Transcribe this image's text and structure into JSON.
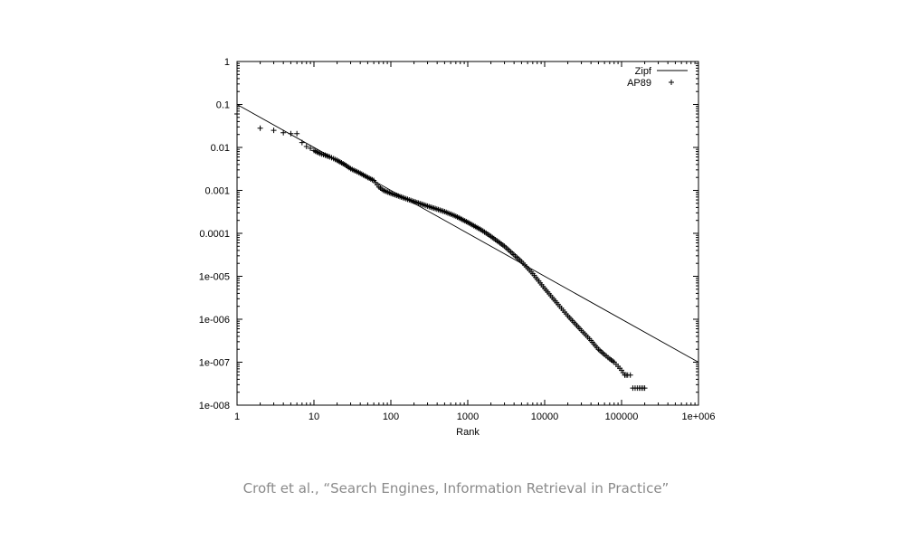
{
  "chart_data": {
    "type": "scatter",
    "xlabel": "Rank",
    "ylabel": "",
    "xscale": "log",
    "yscale": "log",
    "xlim": [
      1,
      1000000
    ],
    "ylim": [
      1e-08,
      1
    ],
    "x_ticks": [
      {
        "value": 1,
        "label": "1"
      },
      {
        "value": 10,
        "label": "10"
      },
      {
        "value": 100,
        "label": "100"
      },
      {
        "value": 1000,
        "label": "1000"
      },
      {
        "value": 10000,
        "label": "10000"
      },
      {
        "value": 100000,
        "label": "100000"
      },
      {
        "value": 1000000,
        "label": "1e+006"
      }
    ],
    "y_ticks": [
      {
        "value": 1,
        "label": "1"
      },
      {
        "value": 0.1,
        "label": "0.1"
      },
      {
        "value": 0.01,
        "label": "0.01"
      },
      {
        "value": 0.001,
        "label": "0.001"
      },
      {
        "value": 0.0001,
        "label": "0.0001"
      },
      {
        "value": 1e-05,
        "label": "1e-005"
      },
      {
        "value": 1e-06,
        "label": "1e-006"
      },
      {
        "value": 1e-07,
        "label": "1e-007"
      },
      {
        "value": 1e-08,
        "label": "1e-008"
      }
    ],
    "legend_position": "top-right",
    "grid": false,
    "series": [
      {
        "name": "Zipf",
        "kind": "line",
        "color": "#000000",
        "x": [
          1,
          1000000
        ],
        "y": [
          0.1,
          1e-07
        ]
      },
      {
        "name": "AP89",
        "kind": "points",
        "marker": "+",
        "color": "#000000",
        "x": [
          1,
          2,
          3,
          4,
          5,
          6,
          7,
          8,
          9,
          10,
          12,
          14,
          16,
          18,
          20,
          25,
          30,
          40,
          50,
          60,
          70,
          80,
          100,
          150,
          200,
          300,
          500,
          700,
          1000,
          1500,
          2000,
          3000,
          5000,
          7000,
          10000,
          15000,
          20000,
          30000,
          40000,
          50000,
          60000,
          70000,
          80000,
          90000,
          100000,
          110000,
          120000,
          130000,
          140000,
          150000,
          160000,
          170000,
          180000,
          190000,
          200000
        ],
        "y": [
          0.06,
          0.028,
          0.025,
          0.022,
          0.021,
          0.021,
          0.013,
          0.0105,
          0.0095,
          0.0085,
          0.0072,
          0.0066,
          0.006,
          0.0055,
          0.005,
          0.004,
          0.0032,
          0.0025,
          0.002,
          0.0017,
          0.0012,
          0.001,
          0.00085,
          0.00066,
          0.00055,
          0.00043,
          0.00032,
          0.00025,
          0.00018,
          0.00012,
          8.5e-05,
          5e-05,
          2.2e-05,
          1.15e-05,
          5.2e-06,
          2.2e-06,
          1.2e-06,
          5.5e-07,
          3.2e-07,
          2e-07,
          1.5e-07,
          1.2e-07,
          1e-07,
          8e-08,
          6.5e-08,
          5e-08,
          5e-08,
          5e-08,
          2.5e-08,
          2.5e-08,
          2.5e-08,
          2.5e-08,
          2.5e-08,
          2.5e-08,
          2.5e-08
        ]
      }
    ]
  },
  "caption": "Croft et al., “Search Engines, Information Retrieval in Practice”"
}
